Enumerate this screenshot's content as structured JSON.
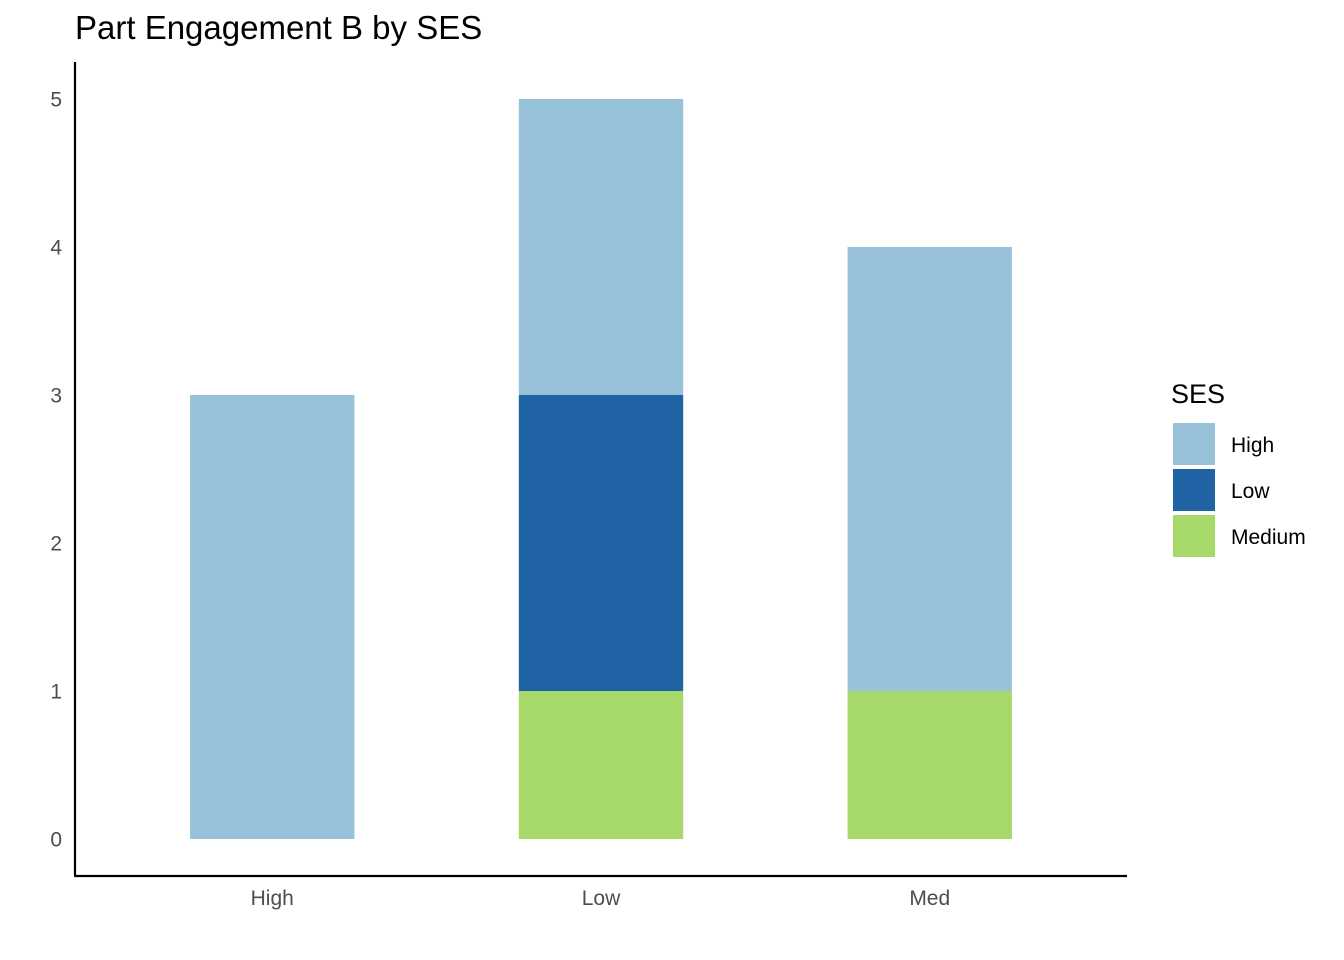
{
  "chart_data": {
    "type": "bar",
    "stacked": true,
    "title": "Part Engagement B by SES",
    "xlabel": "",
    "ylabel": "",
    "categories": [
      "High",
      "Low",
      "Med"
    ],
    "series": [
      {
        "name": "Medium",
        "color": "#a6d96a",
        "values": [
          0,
          1,
          1
        ]
      },
      {
        "name": "Low",
        "color": "#1f63a5",
        "values": [
          0,
          2,
          0
        ]
      },
      {
        "name": "High",
        "color": "#97c2da",
        "values": [
          3,
          2,
          3
        ]
      }
    ],
    "ylim": [
      0,
      5
    ],
    "yticks": [
      0,
      1,
      2,
      3,
      4,
      5
    ],
    "grid": false,
    "legend": {
      "title": "SES",
      "position": "right",
      "items": [
        {
          "label": "High",
          "color": "#97c2da"
        },
        {
          "label": "Low",
          "color": "#1f63a5"
        },
        {
          "label": "Medium",
          "color": "#a6d96a"
        }
      ]
    }
  }
}
